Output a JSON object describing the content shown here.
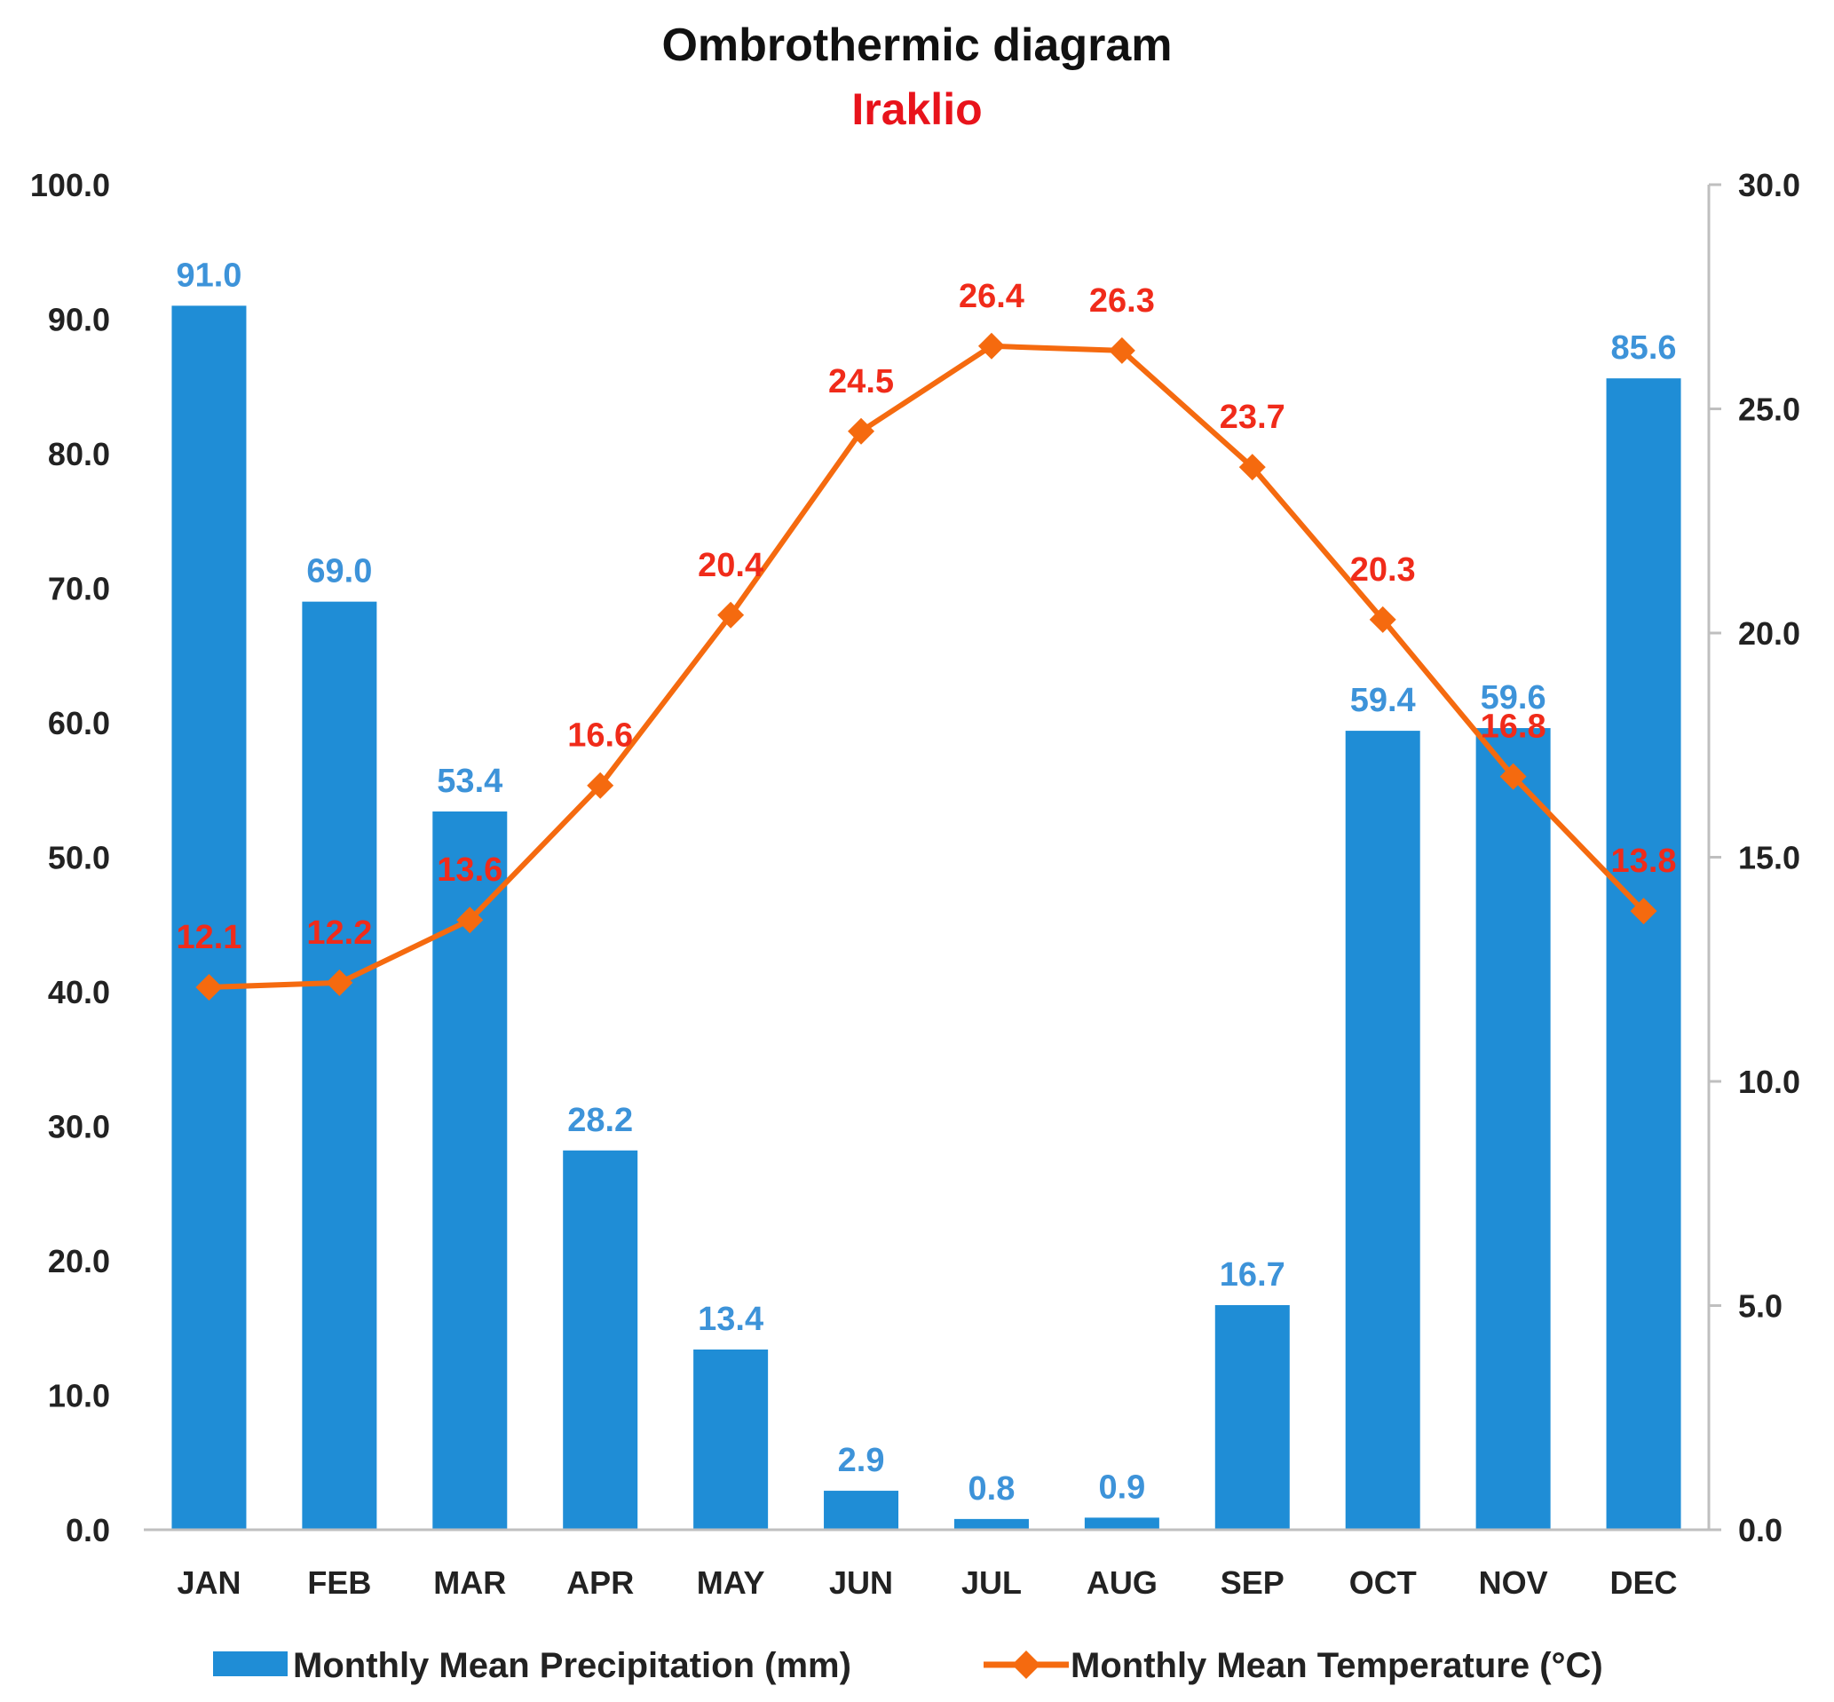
{
  "chart_data": {
    "type": "bar",
    "title": "Ombrothermic diagram",
    "subtitle": "Iraklio",
    "categories": [
      "JAN",
      "FEB",
      "MAR",
      "APR",
      "MAY",
      "JUN",
      "JUL",
      "AUG",
      "SEP",
      "OCT",
      "NOV",
      "DEC"
    ],
    "series": [
      {
        "name": "Monthly Mean Precipitation (mm)",
        "type": "bar",
        "axis": "left",
        "color": "#1f8dd6",
        "label_color": "#3d93d9",
        "values": [
          91.0,
          69.0,
          53.4,
          28.2,
          13.4,
          2.9,
          0.8,
          0.9,
          16.7,
          59.4,
          59.6,
          85.6
        ],
        "labels": [
          "91.0",
          "69.0",
          "53.4",
          "28.2",
          "13.4",
          "2.9",
          "0.8",
          "0.9",
          "16.7",
          "59.4",
          "59.6",
          "85.6"
        ]
      },
      {
        "name": "Monthly Mean Temperature (°C)",
        "type": "line",
        "axis": "right",
        "color": "#f56a0f",
        "label_color": "#f02b1a",
        "marker": "diamond",
        "values": [
          12.1,
          12.2,
          13.6,
          16.6,
          20.4,
          24.5,
          26.4,
          26.3,
          23.7,
          20.3,
          16.8,
          13.8
        ],
        "labels": [
          "12.1",
          "12.2",
          "13.6",
          "16.6",
          "20.4",
          "24.5",
          "26.4",
          "26.3",
          "23.7",
          "20.3",
          "16.8",
          "13.8"
        ]
      }
    ],
    "y_left": {
      "label": "",
      "ylim": [
        0,
        100
      ],
      "ticks": [
        0,
        10,
        20,
        30,
        40,
        50,
        60,
        70,
        80,
        90,
        100
      ],
      "tick_labels": [
        "0.0",
        "10.0",
        "20.0",
        "30.0",
        "40.0",
        "50.0",
        "60.0",
        "70.0",
        "80.0",
        "90.0",
        "100.0"
      ]
    },
    "y_right": {
      "label": "",
      "ylim": [
        0,
        30
      ],
      "ticks": [
        0,
        5,
        10,
        15,
        20,
        25,
        30
      ],
      "tick_labels": [
        "0.0",
        "5.0",
        "10.0",
        "15.0",
        "20.0",
        "25.0",
        "30.0"
      ]
    },
    "xlabel": "",
    "grid": false,
    "legend_position": "bottom"
  }
}
